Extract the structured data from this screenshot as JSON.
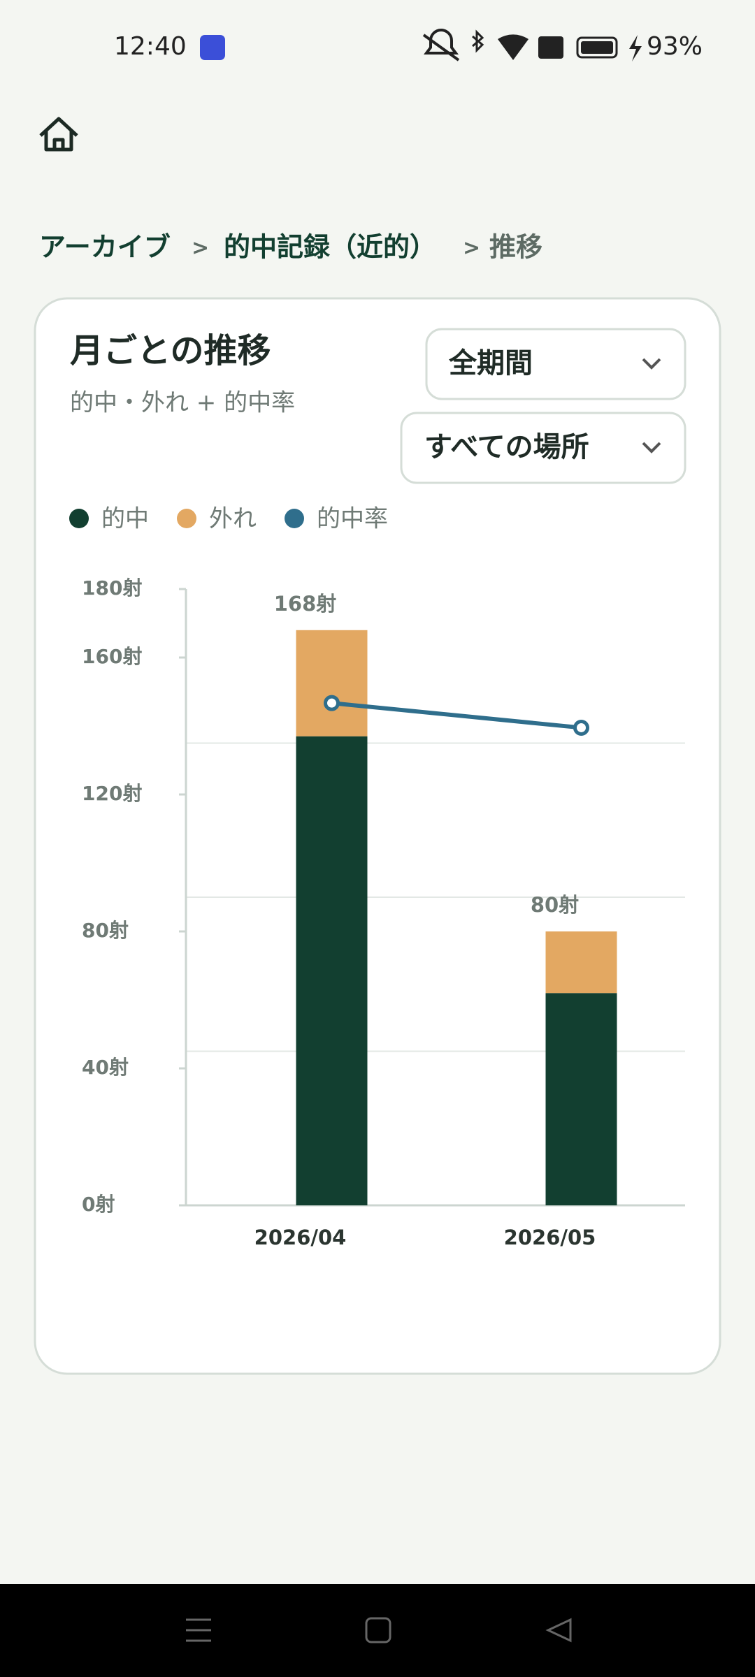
{
  "status_bar": {
    "time": "12:40",
    "battery": "93%"
  },
  "breadcrumbs": [
    "アーカイブ",
    ">",
    "的中記録（近的）",
    ">",
    "推移"
  ],
  "card": {
    "title": "月ごとの推移",
    "subtitle": "的中・外れ + 的中率",
    "period_select": "全期間",
    "place_select": "すべての場所"
  },
  "chart_data": {
    "type": "bar",
    "stacked": true,
    "categories": [
      "2026/04",
      "2026/05"
    ],
    "series": [
      {
        "name": "的中",
        "color": "#123f30",
        "values": [
          137,
          62
        ]
      },
      {
        "name": "外れ",
        "color": "#e3a862",
        "values": [
          31,
          18
        ]
      },
      {
        "name": "的中率",
        "type": "line",
        "axis": "y2",
        "color": "#2f6e8c",
        "values": [
          81.5,
          77.5
        ]
      }
    ],
    "totals": {
      "values": [
        168,
        80
      ],
      "value_labels": [
        "168射",
        "80射"
      ]
    },
    "ylim": [
      0,
      180
    ],
    "yticks": [
      {
        "value": 0,
        "label": "0射"
      },
      {
        "value": 40,
        "label": "40射"
      },
      {
        "value": 80,
        "label": "80射"
      },
      {
        "value": 120,
        "label": "120射"
      },
      {
        "value": 160,
        "label": "160射"
      },
      {
        "value": 180,
        "label": "180射"
      }
    ],
    "y2lim": [
      0,
      100
    ],
    "y2ticks": [
      25,
      50,
      75
    ],
    "grid": "y2",
    "legend": "top-left"
  }
}
